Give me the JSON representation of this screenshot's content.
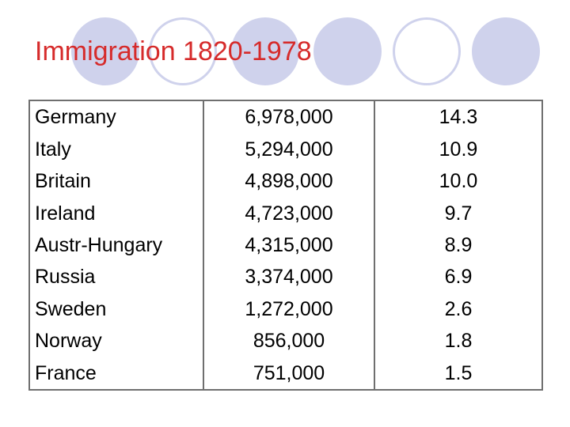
{
  "slide": {
    "title": "Immigration 1820-1978"
  },
  "table": {
    "rows": [
      {
        "country": "Germany",
        "count": "6,978,000",
        "percent": "14.3"
      },
      {
        "country": "Italy",
        "count": "5,294,000",
        "percent": "10.9"
      },
      {
        "country": "Britain",
        "count": "4,898,000",
        "percent": "10.0"
      },
      {
        "country": "Ireland",
        "count": "4,723,000",
        "percent": "9.7"
      },
      {
        "country": "Austr-Hungary",
        "count": "4,315,000",
        "percent": "8.9"
      },
      {
        "country": "Russia",
        "count": "3,374,000",
        "percent": "6.9"
      },
      {
        "country": "Sweden",
        "count": "1,272,000",
        "percent": "2.6"
      },
      {
        "country": "Norway",
        "count": "856,000",
        "percent": "1.8"
      },
      {
        "country": "France",
        "count": "751,000",
        "percent": "1.5"
      }
    ]
  },
  "colors": {
    "title": "#d62b2b",
    "decor": "#cfd2ec",
    "border": "#6f6f6f"
  }
}
